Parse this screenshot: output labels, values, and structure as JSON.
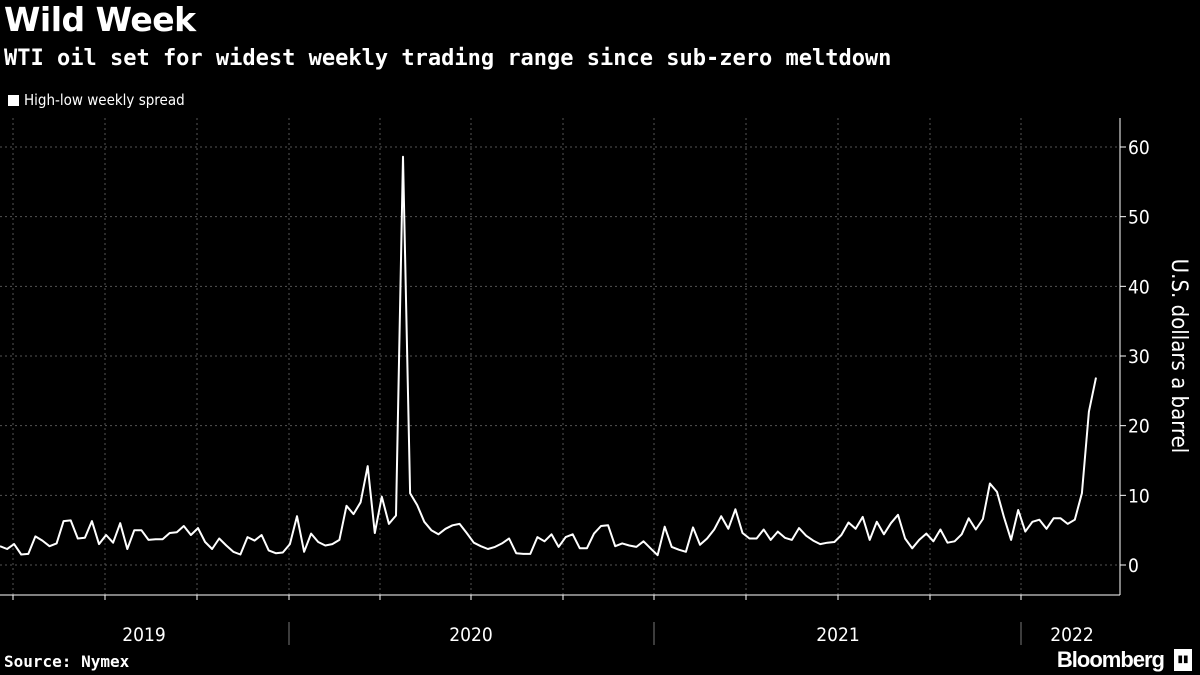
{
  "chart_data": {
    "type": "line",
    "title": "Wild Week",
    "subtitle": "WTI oil set for widest weekly trading range since sub-zero meltdown",
    "ylabel": "U.S. dollars a barrel",
    "xlabel": "",
    "ylim": [
      -5,
      65
    ],
    "yticks": [
      0,
      10,
      20,
      30,
      40,
      50,
      60
    ],
    "year_labels": [
      "2019",
      "2020",
      "2021",
      "2022"
    ],
    "grid": true,
    "legend": "top-left",
    "series": [
      {
        "name": "High-low weekly spread",
        "color": "#ffffff",
        "values": [
          2.7,
          2.3,
          3.0,
          1.5,
          1.6,
          4.1,
          3.5,
          2.7,
          3.1,
          6.3,
          6.4,
          3.8,
          3.9,
          6.3,
          3.0,
          4.3,
          3.2,
          6.0,
          2.3,
          5.0,
          5.0,
          3.6,
          3.7,
          3.7,
          4.6,
          4.7,
          5.6,
          4.3,
          5.3,
          3.3,
          2.3,
          3.8,
          2.8,
          1.9,
          1.5,
          4.0,
          3.5,
          4.3,
          2.1,
          1.7,
          1.8,
          3.0,
          7.0,
          1.9,
          4.5,
          3.3,
          2.8,
          3.0,
          3.6,
          8.5,
          7.3,
          9.0,
          14.2,
          4.6,
          9.8,
          5.9,
          7.1,
          58.6,
          10.3,
          8.6,
          6.2,
          5.0,
          4.4,
          5.2,
          5.7,
          5.9,
          4.6,
          3.2,
          2.7,
          2.3,
          2.6,
          3.1,
          3.8,
          1.7,
          1.6,
          1.6,
          4.0,
          3.4,
          4.4,
          2.6,
          4.0,
          4.4,
          2.4,
          2.4,
          4.5,
          5.6,
          5.7,
          2.7,
          3.1,
          2.8,
          2.6,
          3.4,
          2.4,
          1.4,
          5.5,
          2.6,
          2.2,
          1.9,
          5.4,
          2.9,
          3.8,
          5.1,
          7.0,
          5.2,
          8.0,
          4.6,
          3.8,
          3.8,
          5.1,
          3.6,
          4.8,
          3.9,
          3.6,
          5.3,
          4.2,
          3.5,
          3.0,
          3.2,
          3.3,
          4.3,
          6.1,
          5.2,
          6.9,
          3.6,
          6.2,
          4.4,
          6.0,
          7.2,
          3.8,
          2.4,
          3.6,
          4.5,
          3.4,
          5.1,
          3.2,
          3.4,
          4.4,
          6.7,
          5.1,
          6.6,
          11.7,
          10.5,
          6.8,
          3.6,
          7.9,
          4.8,
          6.2,
          6.5,
          5.2,
          6.7,
          6.7,
          5.9,
          6.5,
          10.3,
          22.0,
          26.9
        ]
      }
    ]
  },
  "legend_label": "High-low weekly spread",
  "source": "Source: Nymex",
  "brand": "Bloomberg"
}
